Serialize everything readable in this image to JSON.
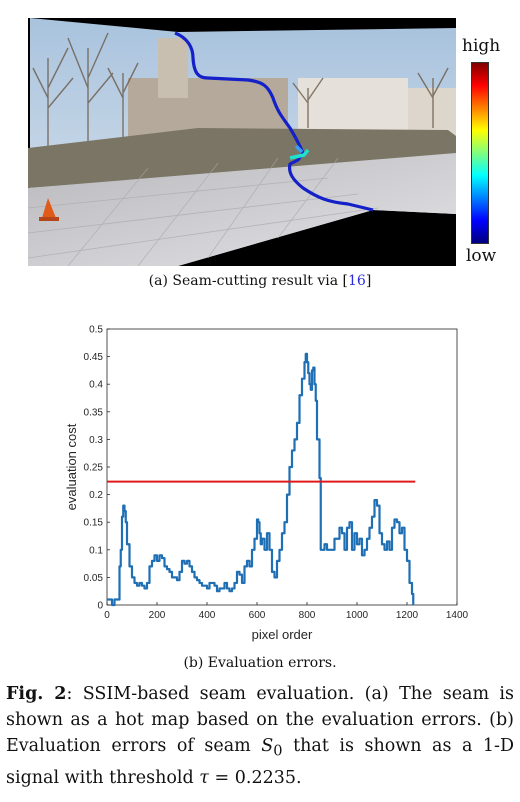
{
  "figure_a": {
    "caption_prefix": "(a) Seam-cutting result via [",
    "caption_ref": "16",
    "caption_suffix": "]",
    "colorbar_high": "high",
    "colorbar_low": "low"
  },
  "figure_b": {
    "caption": "(b) Evaluation errors."
  },
  "caption": {
    "label": "Fig. 2",
    "text_1": ": SSIM-based seam evaluation. (a) The seam is shown as a hot map based on the evaluation errors. (b) Evaluation errors of seam ",
    "symbol": "S",
    "subscript": "0",
    "text_2": " that is shown as a 1-D signal with threshold ",
    "tau": "τ",
    "text_3": " = 0.2235."
  },
  "chart_data": {
    "type": "line",
    "xlabel": "pixel order",
    "ylabel": "evaluation cost",
    "xlim": [
      0,
      1400
    ],
    "ylim": [
      0,
      0.5
    ],
    "xticks": [
      0,
      200,
      400,
      600,
      800,
      1000,
      1200,
      1400
    ],
    "yticks": [
      0,
      0.05,
      0.1,
      0.15,
      0.2,
      0.25,
      0.3,
      0.35,
      0.4,
      0.45,
      0.5
    ],
    "ytick_labels": [
      "0",
      "0.05",
      "0.1",
      "0.15",
      "0.2",
      "0.25",
      "0.3",
      "0.35",
      "0.4",
      "0.45",
      "0.5"
    ],
    "threshold": 0.2235,
    "line_color": "#1f6fb5",
    "threshold_color": "#e01a1a",
    "x": [
      0,
      10,
      20,
      30,
      40,
      50,
      55,
      60,
      65,
      70,
      75,
      80,
      90,
      100,
      110,
      120,
      130,
      140,
      150,
      160,
      170,
      180,
      190,
      200,
      210,
      220,
      230,
      240,
      250,
      260,
      270,
      280,
      290,
      300,
      310,
      320,
      330,
      340,
      350,
      360,
      370,
      380,
      390,
      400,
      410,
      420,
      430,
      440,
      450,
      460,
      470,
      480,
      490,
      500,
      510,
      520,
      530,
      540,
      550,
      560,
      570,
      580,
      590,
      600,
      605,
      610,
      615,
      620,
      630,
      640,
      650,
      660,
      670,
      680,
      690,
      700,
      710,
      720,
      730,
      740,
      750,
      760,
      770,
      780,
      790,
      795,
      800,
      805,
      810,
      815,
      820,
      825,
      830,
      835,
      840,
      850,
      855,
      860,
      870,
      880,
      890,
      900,
      910,
      920,
      930,
      940,
      950,
      960,
      970,
      980,
      990,
      1000,
      1010,
      1020,
      1030,
      1040,
      1050,
      1060,
      1070,
      1080,
      1090,
      1100,
      1110,
      1120,
      1130,
      1140,
      1150,
      1160,
      1170,
      1180,
      1190,
      1200,
      1210,
      1220,
      1225
    ],
    "y": [
      0.01,
      0.01,
      0.0,
      0.01,
      0.01,
      0.07,
      0.1,
      0.16,
      0.18,
      0.17,
      0.15,
      0.11,
      0.07,
      0.05,
      0.04,
      0.035,
      0.04,
      0.035,
      0.03,
      0.04,
      0.07,
      0.08,
      0.09,
      0.08,
      0.09,
      0.085,
      0.07,
      0.065,
      0.06,
      0.05,
      0.05,
      0.045,
      0.06,
      0.08,
      0.075,
      0.08,
      0.07,
      0.06,
      0.05,
      0.045,
      0.04,
      0.035,
      0.035,
      0.03,
      0.04,
      0.04,
      0.035,
      0.025,
      0.03,
      0.03,
      0.04,
      0.03,
      0.025,
      0.03,
      0.04,
      0.06,
      0.055,
      0.04,
      0.07,
      0.08,
      0.07,
      0.1,
      0.12,
      0.155,
      0.15,
      0.13,
      0.11,
      0.12,
      0.1,
      0.13,
      0.1,
      0.06,
      0.05,
      0.08,
      0.1,
      0.13,
      0.15,
      0.2,
      0.25,
      0.28,
      0.3,
      0.33,
      0.38,
      0.41,
      0.44,
      0.455,
      0.44,
      0.42,
      0.4,
      0.39,
      0.425,
      0.43,
      0.4,
      0.37,
      0.3,
      0.23,
      0.1,
      0.1,
      0.11,
      0.1,
      0.1,
      0.1,
      0.12,
      0.12,
      0.14,
      0.13,
      0.1,
      0.14,
      0.15,
      0.1,
      0.13,
      0.11,
      0.12,
      0.09,
      0.1,
      0.12,
      0.14,
      0.16,
      0.19,
      0.18,
      0.13,
      0.11,
      0.1,
      0.115,
      0.1,
      0.14,
      0.155,
      0.15,
      0.13,
      0.14,
      0.1,
      0.08,
      0.04,
      0.02,
      0.0
    ]
  }
}
